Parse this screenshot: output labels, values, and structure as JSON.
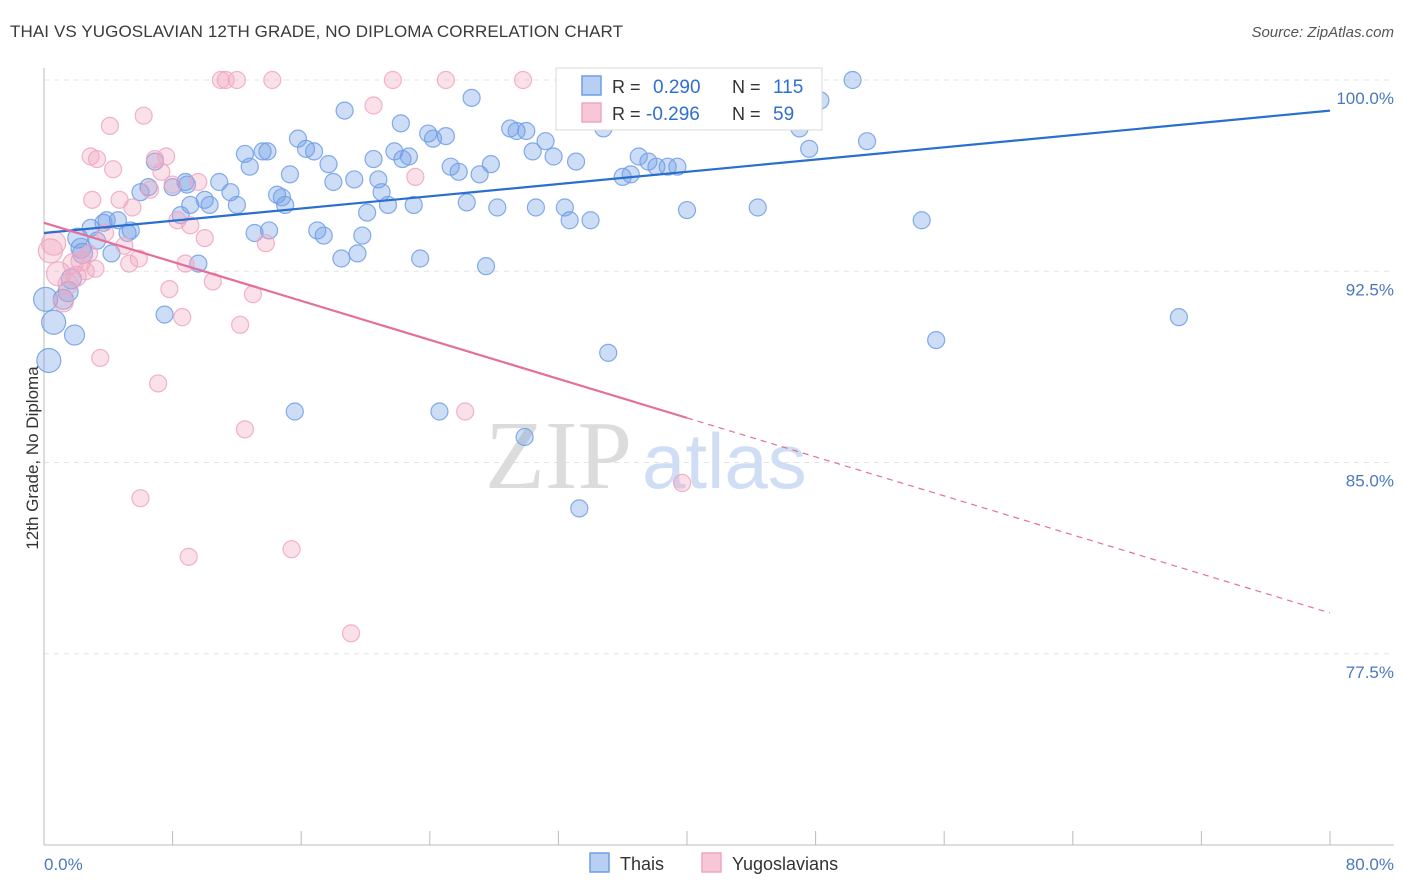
{
  "title": "THAI VS YUGOSLAVIAN 12TH GRADE, NO DIPLOMA CORRELATION CHART",
  "source": "Source: ZipAtlas.com",
  "chart_data": {
    "type": "scatter",
    "title": "THAI VS YUGOSLAVIAN 12TH GRADE, NO DIPLOMA CORRELATION CHART",
    "xlabel": "",
    "ylabel": "12th Grade, No Diploma",
    "xlim": [
      0,
      80
    ],
    "ylim": [
      70.0,
      100.0
    ],
    "x_tick_labels": [
      "0.0%",
      "80.0%"
    ],
    "y_ticks": [
      77.5,
      85.0,
      92.5,
      100.0
    ],
    "y_tick_labels": [
      "77.5%",
      "85.0%",
      "92.5%",
      "100.0%"
    ],
    "grid": true,
    "legend_position": "top-center",
    "watermark": {
      "zip": "ZIP",
      "atlas": "atlas"
    },
    "stats": [
      {
        "r_label": "R =",
        "r_value": "0.290",
        "n_label": "N =",
        "n_value": "115"
      },
      {
        "r_label": "R =",
        "r_value": "-0.296",
        "n_label": "N =",
        "n_value": "59"
      }
    ],
    "colors": {
      "thais": "#6f9ee6",
      "yugoslavians": "#f0a6bf",
      "thais_line": "#2a6fcf",
      "yugoslavians_line": "#e46f9a"
    },
    "series": [
      {
        "name": "Thais",
        "trend": {
          "x0": 0,
          "y0": 94.0,
          "x1": 80,
          "y1": 98.8,
          "solid_to": 80
        },
        "points": [
          [
            0.3,
            89.0
          ],
          [
            0.6,
            90.5
          ],
          [
            1.2,
            91.4
          ],
          [
            1.5,
            91.7
          ],
          [
            1.9,
            90.0
          ],
          [
            2.1,
            93.8
          ],
          [
            2.4,
            93.2
          ],
          [
            2.9,
            94.2
          ],
          [
            3.3,
            93.7
          ],
          [
            3.9,
            94.5
          ],
          [
            4.2,
            93.2
          ],
          [
            4.6,
            94.5
          ],
          [
            5.4,
            94.1
          ],
          [
            6.0,
            95.6
          ],
          [
            6.5,
            95.8
          ],
          [
            6.9,
            96.8
          ],
          [
            7.5,
            90.8
          ],
          [
            8.0,
            95.8
          ],
          [
            8.5,
            94.7
          ],
          [
            8.8,
            96.0
          ],
          [
            9.1,
            95.1
          ],
          [
            9.6,
            92.8
          ],
          [
            10.0,
            95.3
          ],
          [
            10.3,
            95.1
          ],
          [
            10.9,
            96.0
          ],
          [
            11.6,
            95.6
          ],
          [
            12.0,
            95.1
          ],
          [
            12.5,
            97.1
          ],
          [
            12.8,
            96.6
          ],
          [
            13.1,
            94.0
          ],
          [
            13.6,
            97.2
          ],
          [
            13.9,
            97.2
          ],
          [
            14.0,
            94.1
          ],
          [
            14.5,
            95.5
          ],
          [
            15.0,
            95.1
          ],
          [
            15.3,
            96.3
          ],
          [
            15.6,
            87.0
          ],
          [
            15.8,
            97.7
          ],
          [
            16.3,
            97.3
          ],
          [
            16.8,
            97.2
          ],
          [
            17.0,
            94.1
          ],
          [
            17.4,
            93.9
          ],
          [
            17.7,
            96.7
          ],
          [
            18.0,
            96.0
          ],
          [
            18.5,
            93.0
          ],
          [
            18.7,
            98.8
          ],
          [
            19.3,
            96.1
          ],
          [
            19.5,
            93.2
          ],
          [
            19.8,
            93.9
          ],
          [
            20.1,
            94.8
          ],
          [
            20.5,
            96.9
          ],
          [
            20.8,
            96.1
          ],
          [
            21.0,
            95.6
          ],
          [
            21.4,
            95.1
          ],
          [
            21.8,
            97.2
          ],
          [
            22.3,
            96.9
          ],
          [
            22.7,
            97.0
          ],
          [
            23.0,
            95.1
          ],
          [
            23.4,
            93.0
          ],
          [
            23.9,
            97.9
          ],
          [
            24.2,
            97.7
          ],
          [
            24.6,
            87.0
          ],
          [
            25.0,
            97.8
          ],
          [
            25.3,
            96.6
          ],
          [
            25.8,
            96.4
          ],
          [
            26.3,
            95.2
          ],
          [
            26.6,
            99.3
          ],
          [
            27.1,
            96.3
          ],
          [
            27.5,
            92.7
          ],
          [
            27.8,
            96.7
          ],
          [
            28.2,
            95.0
          ],
          [
            29.0,
            98.1
          ],
          [
            29.4,
            98.0
          ],
          [
            29.9,
            86.0
          ],
          [
            30.4,
            97.2
          ],
          [
            30.6,
            95.0
          ],
          [
            31.2,
            97.6
          ],
          [
            31.7,
            97.0
          ],
          [
            32.4,
            95.0
          ],
          [
            32.7,
            94.5
          ],
          [
            33.1,
            96.8
          ],
          [
            33.3,
            83.2
          ],
          [
            34.0,
            94.5
          ],
          [
            34.4,
            98.9
          ],
          [
            34.8,
            98.1
          ],
          [
            35.1,
            89.3
          ],
          [
            35.5,
            98.9
          ],
          [
            36.0,
            96.2
          ],
          [
            36.4,
            99.0
          ],
          [
            37.0,
            97.0
          ],
          [
            37.6,
            96.8
          ],
          [
            38.1,
            96.6
          ],
          [
            38.8,
            96.6
          ],
          [
            39.4,
            96.6
          ],
          [
            40.0,
            94.9
          ],
          [
            41.8,
            100.0
          ],
          [
            44.4,
            95.0
          ],
          [
            47.0,
            98.1
          ],
          [
            47.6,
            97.3
          ],
          [
            48.3,
            99.2
          ],
          [
            50.3,
            100.0
          ],
          [
            51.2,
            97.6
          ],
          [
            54.6,
            94.5
          ],
          [
            55.5,
            89.8
          ],
          [
            70.6,
            90.7
          ],
          [
            0.1,
            91.4
          ],
          [
            1.7,
            92.2
          ],
          [
            2.3,
            93.4
          ],
          [
            3.7,
            94.4
          ],
          [
            5.2,
            94.0
          ],
          [
            8.9,
            95.9
          ],
          [
            14.8,
            95.4
          ],
          [
            22.2,
            98.3
          ],
          [
            30.0,
            98.0
          ],
          [
            36.5,
            96.3
          ]
        ]
      },
      {
        "name": "Yugoslavians",
        "trend": {
          "x0": 0,
          "y0": 94.4,
          "x1": 80,
          "y1": 79.1,
          "solid_to": 40
        },
        "points": [
          [
            0.4,
            93.3
          ],
          [
            0.6,
            93.6
          ],
          [
            0.9,
            92.4
          ],
          [
            1.2,
            91.3
          ],
          [
            1.5,
            92.0
          ],
          [
            1.8,
            92.8
          ],
          [
            2.0,
            92.3
          ],
          [
            2.3,
            92.9
          ],
          [
            2.6,
            92.5
          ],
          [
            2.8,
            93.2
          ],
          [
            3.0,
            95.3
          ],
          [
            3.2,
            92.6
          ],
          [
            3.3,
            96.9
          ],
          [
            3.5,
            89.1
          ],
          [
            3.8,
            94.0
          ],
          [
            4.1,
            98.2
          ],
          [
            4.3,
            96.5
          ],
          [
            4.7,
            95.3
          ],
          [
            5.0,
            93.5
          ],
          [
            5.3,
            92.8
          ],
          [
            5.5,
            95.0
          ],
          [
            5.9,
            93.0
          ],
          [
            6.2,
            98.6
          ],
          [
            6.6,
            95.7
          ],
          [
            6.9,
            96.9
          ],
          [
            7.1,
            88.1
          ],
          [
            7.3,
            96.4
          ],
          [
            7.6,
            97.0
          ],
          [
            7.8,
            91.8
          ],
          [
            8.0,
            95.9
          ],
          [
            8.3,
            94.5
          ],
          [
            8.6,
            90.7
          ],
          [
            8.8,
            92.8
          ],
          [
            9.1,
            94.3
          ],
          [
            9.6,
            96.0
          ],
          [
            10.0,
            93.8
          ],
          [
            10.5,
            92.1
          ],
          [
            11.0,
            100.0
          ],
          [
            11.3,
            100.0
          ],
          [
            12.0,
            100.0
          ],
          [
            12.2,
            90.4
          ],
          [
            12.5,
            86.3
          ],
          [
            13.0,
            91.6
          ],
          [
            13.8,
            93.6
          ],
          [
            14.2,
            100.0
          ],
          [
            15.4,
            81.6
          ],
          [
            19.1,
            78.3
          ],
          [
            20.5,
            99.0
          ],
          [
            21.7,
            100.0
          ],
          [
            23.1,
            96.2
          ],
          [
            25.0,
            100.0
          ],
          [
            26.2,
            87.0
          ],
          [
            29.8,
            100.0
          ],
          [
            33.5,
            100.0
          ],
          [
            6.0,
            83.6
          ],
          [
            9.0,
            81.3
          ],
          [
            39.7,
            84.2
          ],
          [
            36.2,
            99.0
          ],
          [
            2.9,
            97.0
          ]
        ]
      }
    ]
  },
  "bottom_legend": [
    {
      "label": "Thais"
    },
    {
      "label": "Yugoslavians"
    }
  ]
}
